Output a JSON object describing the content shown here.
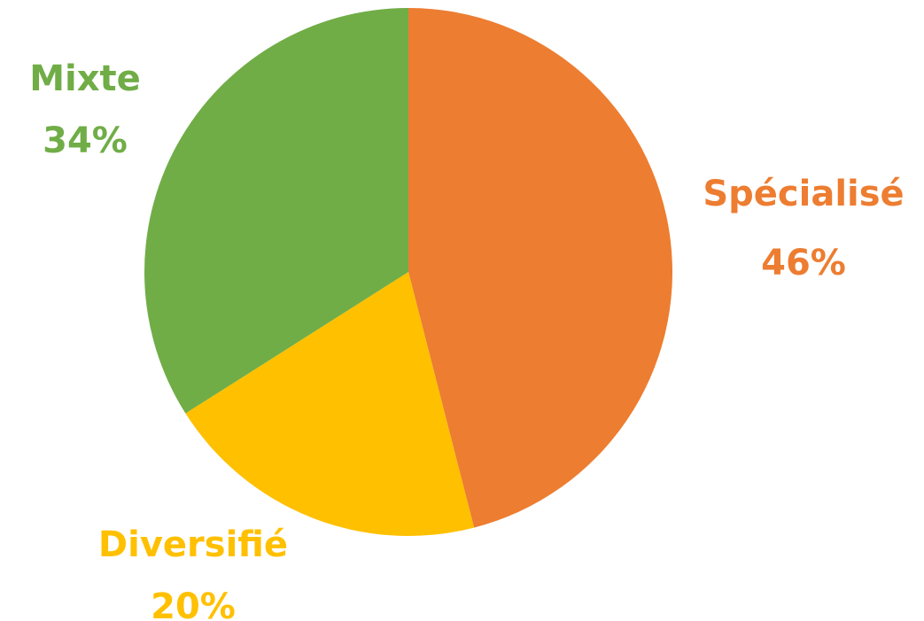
{
  "chart_data": {
    "type": "pie",
    "start_angle": "12 o'clock",
    "direction": "clockwise",
    "slices": [
      {
        "label": "Spécialisé",
        "value": 46,
        "value_label": "46%",
        "color": "#ED7D31"
      },
      {
        "label": "Diversifié",
        "value": 20,
        "value_label": "20%",
        "color": "#FFC000"
      },
      {
        "label": "Mixte",
        "value": 34,
        "value_label": "34%",
        "color": "#70AD47"
      }
    ],
    "title": "",
    "legend": "none (labels outside slices)"
  }
}
